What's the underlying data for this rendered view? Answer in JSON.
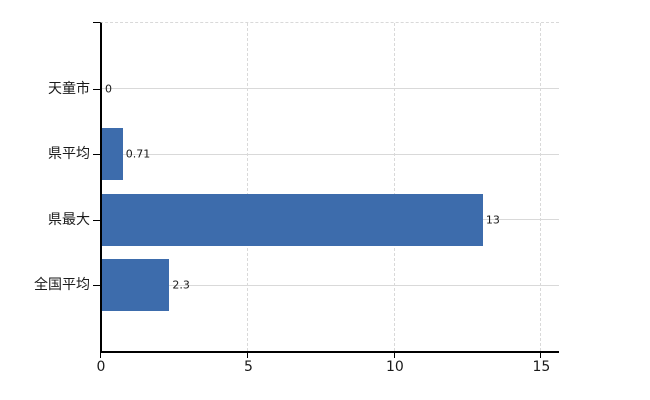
{
  "chart_data": {
    "type": "bar",
    "orientation": "horizontal",
    "title": "",
    "xlabel": "",
    "ylabel": "",
    "categories": [
      "天童市",
      "県平均",
      "県最大",
      "全国平均"
    ],
    "values": [
      0,
      0.71,
      13,
      2.3
    ],
    "value_labels": [
      "0",
      "0.71",
      "13",
      "2.3"
    ],
    "xticks": [
      0,
      5,
      10,
      15
    ],
    "xtick_labels": [
      "0",
      "5",
      "10",
      "15"
    ],
    "xlim": [
      0,
      15.6
    ],
    "legend": "none",
    "grid": {
      "vertical": "dashed at x ticks",
      "horizontal": "solid at category centers",
      "plot_top_border": "dashed"
    },
    "colors": {
      "bar": "#3d6cac",
      "gridline": "#d9d9d9",
      "axis": "#000000",
      "text": "#1a1a1a",
      "background": "#ffffff"
    }
  }
}
